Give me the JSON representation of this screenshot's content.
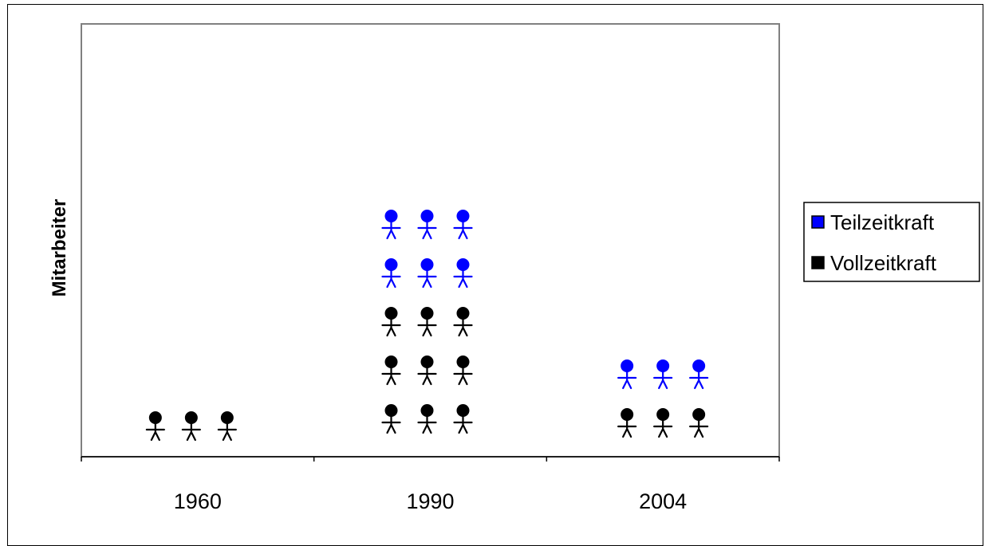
{
  "chart_data": {
    "type": "bar",
    "categories": [
      "1960",
      "1990",
      "2004"
    ],
    "series": [
      {
        "name": "Vollzeitkraft",
        "values": [
          1,
          3,
          1
        ],
        "color": "#000000"
      },
      {
        "name": "Teilzeitkraft",
        "values": [
          0,
          2,
          1
        ],
        "color": "#0000FF"
      }
    ],
    "ylabel": "Mitarbeiter",
    "xlabel": "",
    "stacked": true,
    "pictogram": "person-icon",
    "icons_per_unit": 3,
    "legend_position": "right",
    "grid": false,
    "colors": {
      "plot_border": "#808080",
      "vollzeit": "#000000",
      "teilzeit": "#0000FF"
    }
  }
}
